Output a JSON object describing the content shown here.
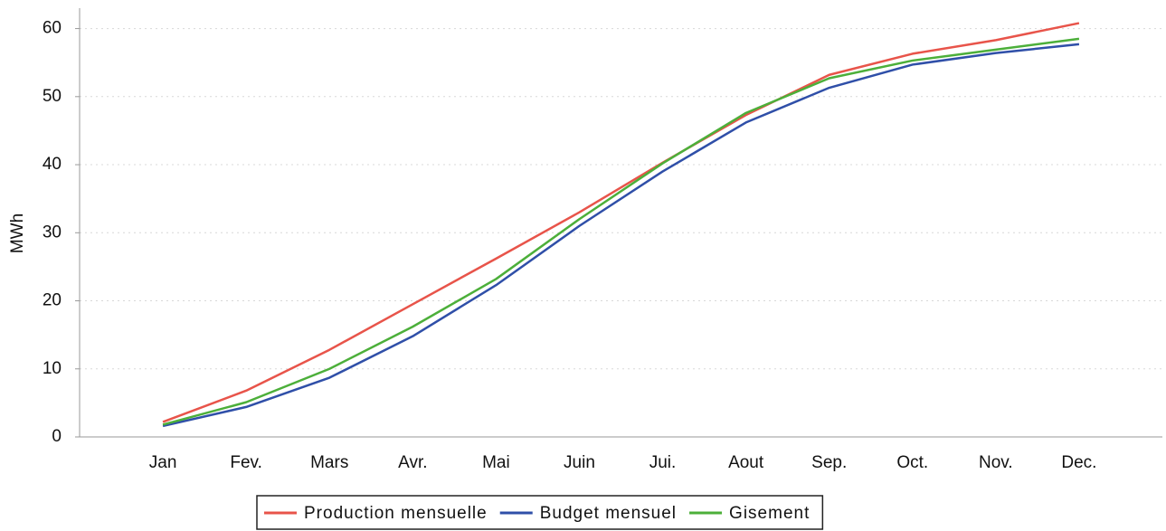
{
  "chart_data": {
    "type": "line",
    "y_label": "MWh",
    "categories": [
      "Jan",
      "Fev.",
      "Mars",
      "Avr.",
      "Mai",
      "Juin",
      "Jui.",
      "Aout",
      "Sep.",
      "Oct.",
      "Nov.",
      "Dec."
    ],
    "series": [
      {
        "name": "Production mensuelle",
        "color": "#e8544a",
        "values": [
          2.2,
          6.8,
          12.8,
          19.5,
          26.2,
          33,
          40.3,
          47.3,
          53.2,
          56.3,
          58.3,
          60.8
        ]
      },
      {
        "name": "Budget mensuel",
        "color": "#2f4fa8",
        "values": [
          1.6,
          4.4,
          8.7,
          14.8,
          22.3,
          31,
          39,
          46.2,
          51.3,
          54.7,
          56.4,
          57.7
        ]
      },
      {
        "name": "Gisement",
        "color": "#4caf3a",
        "values": [
          1.8,
          5.1,
          10,
          16.2,
          23.2,
          32,
          40.2,
          47.6,
          52.7,
          55.3,
          56.9,
          58.5
        ]
      }
    ],
    "ylim": [
      0,
      63
    ],
    "yticks": [
      0,
      10,
      20,
      30,
      40,
      50,
      60
    ],
    "grid": true,
    "legend": "bottom"
  }
}
